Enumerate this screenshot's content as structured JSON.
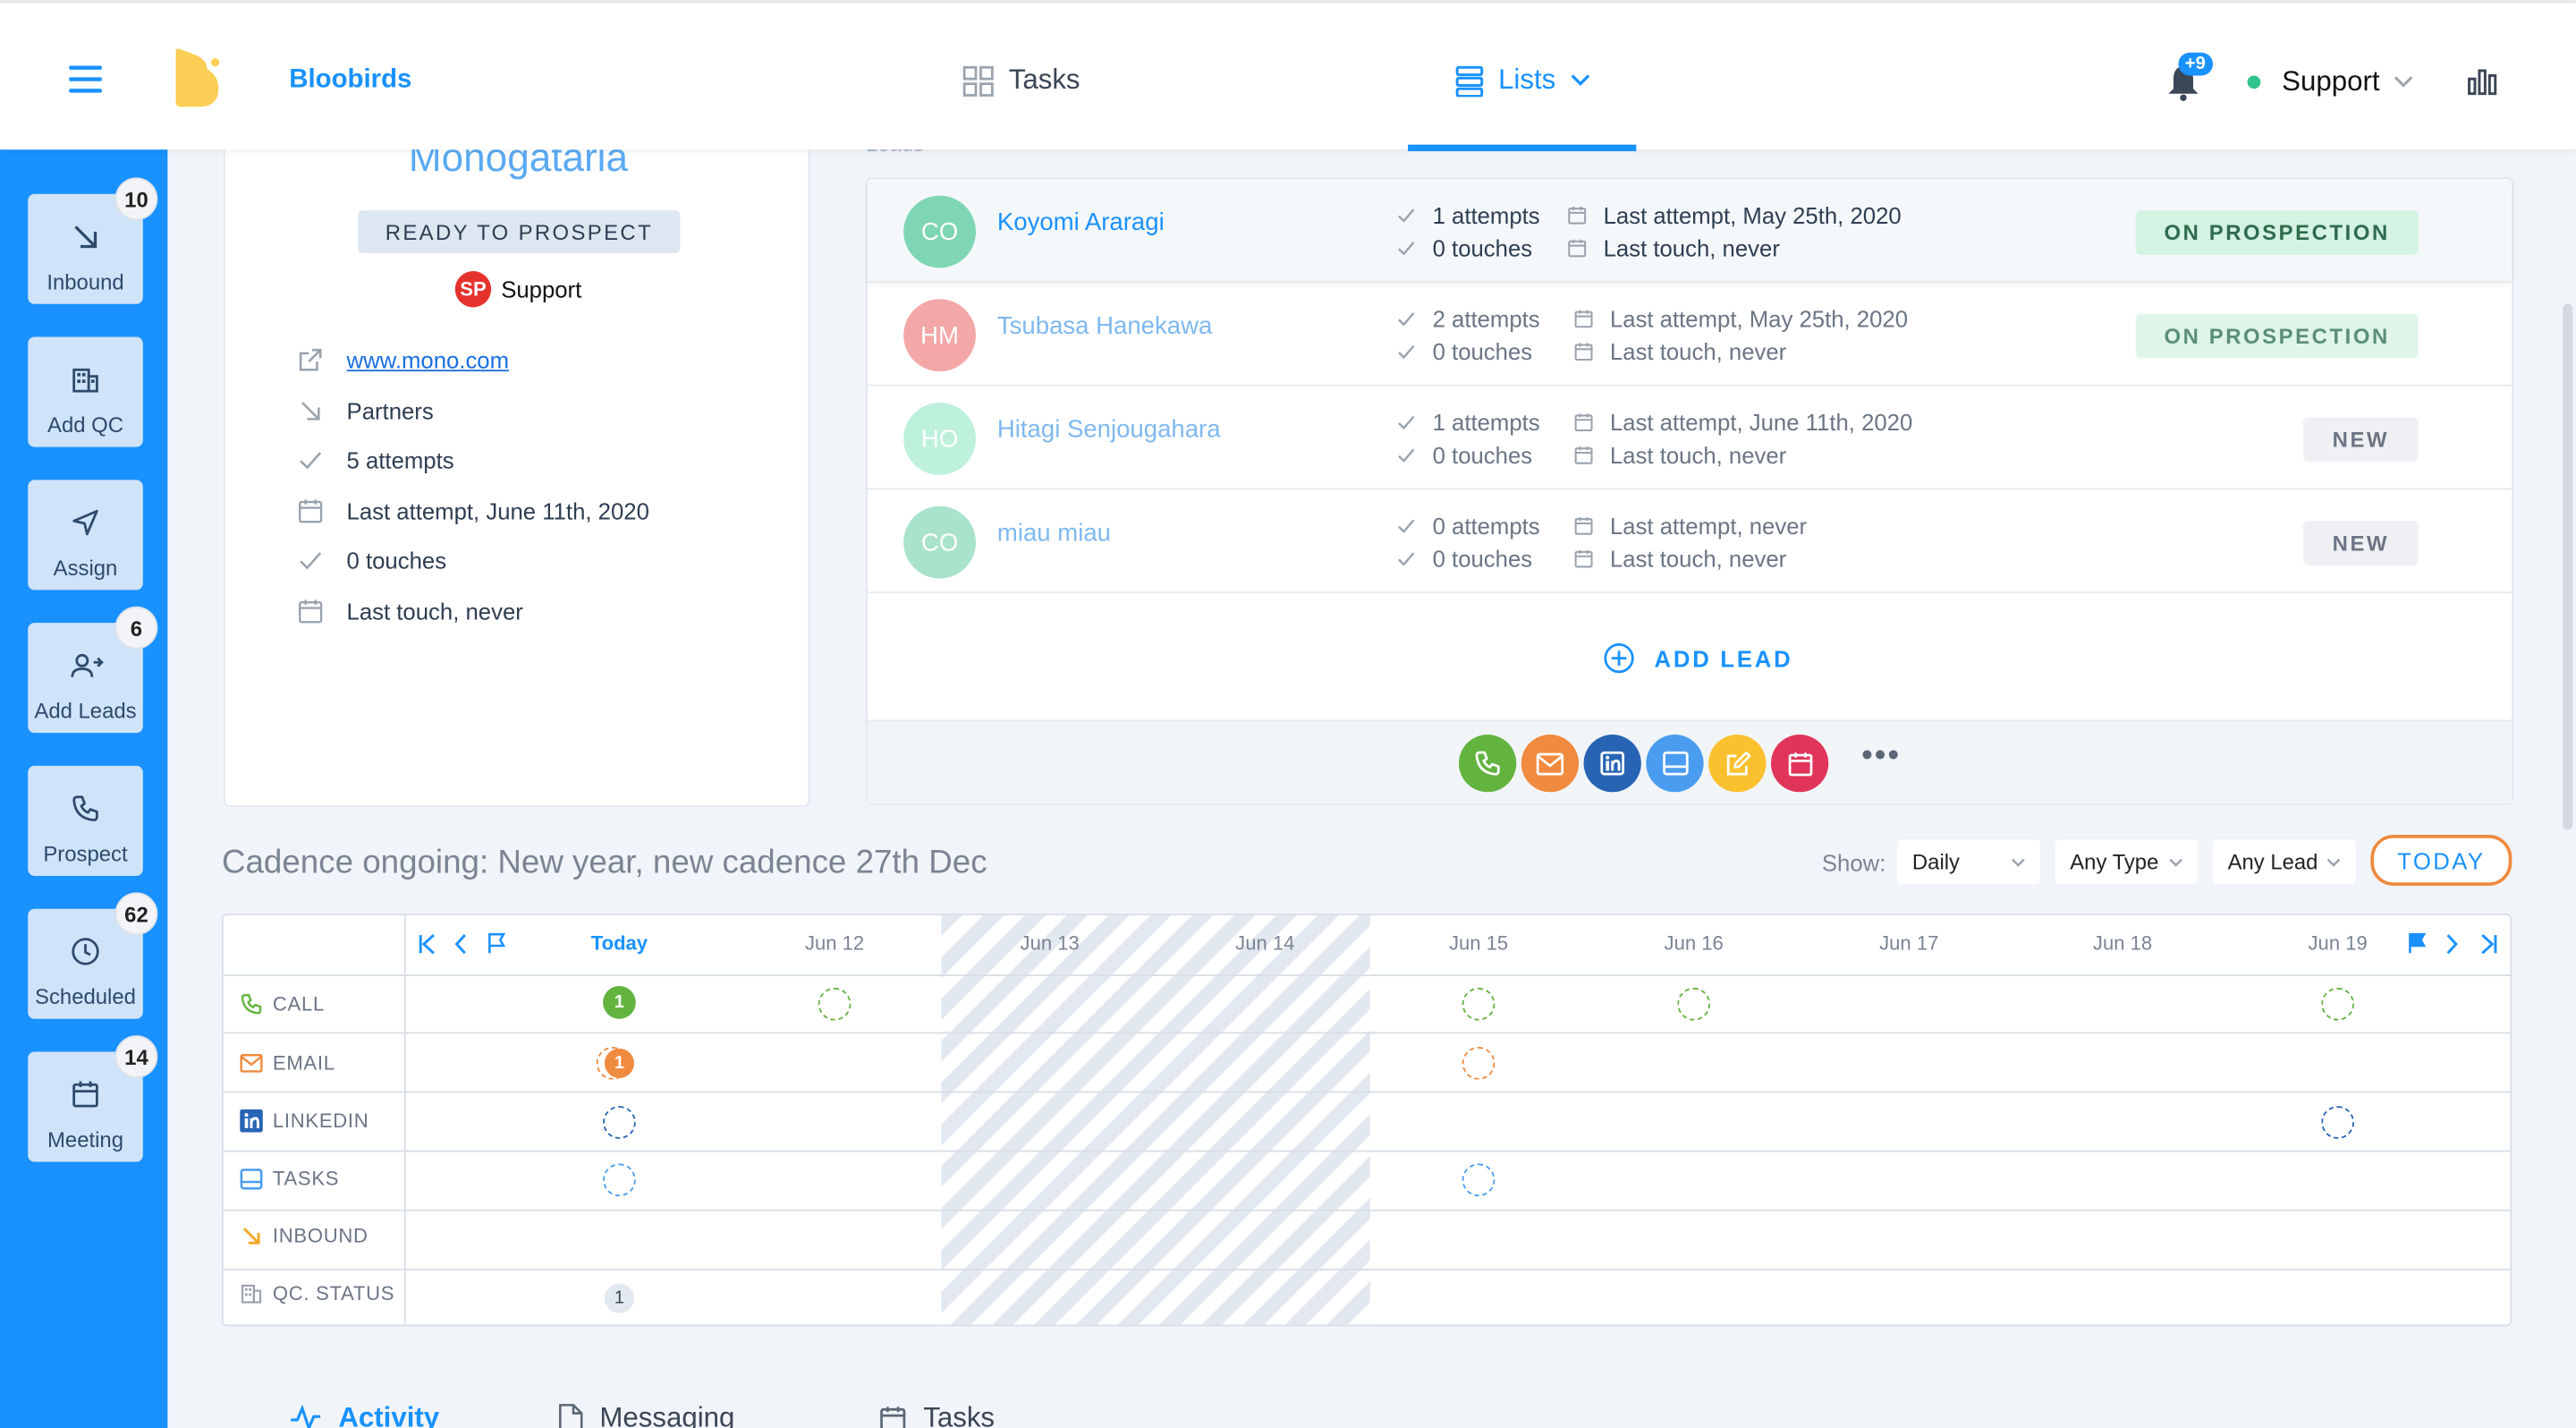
{
  "header": {
    "brand": "Bloobirds",
    "nav": {
      "tasks": "Tasks",
      "lists": "Lists"
    },
    "notif_badge": "+9",
    "user": "Support"
  },
  "sidebar": {
    "items": [
      {
        "label": "Inbound",
        "badge": "10",
        "icon": "arrow-down-right-icon"
      },
      {
        "label": "Add QC",
        "badge": "",
        "icon": "building-icon"
      },
      {
        "label": "Assign",
        "badge": "",
        "icon": "send-icon"
      },
      {
        "label": "Add Leads",
        "badge": "6",
        "icon": "user-plus-icon"
      },
      {
        "label": "Prospect",
        "badge": "",
        "icon": "phone-icon"
      },
      {
        "label": "Scheduled",
        "badge": "62",
        "icon": "clock-icon"
      },
      {
        "label": "Meeting",
        "badge": "14",
        "icon": "calendar-icon"
      }
    ]
  },
  "company": {
    "name": "Monogataria",
    "status": "READY TO PROSPECT",
    "owner_initials": "SP",
    "owner": "Support",
    "website": "www.mono.com",
    "source": "Partners",
    "attempts": "5 attempts",
    "last_attempt": "Last attempt, June 11th, 2020",
    "touches": "0 touches",
    "last_touch": "Last touch, never"
  },
  "leads": {
    "title": "Leads",
    "rows": [
      {
        "initials": "CO",
        "name": "Koyomi Araragi",
        "attempts": "1 attempts",
        "touches": "0 touches",
        "last_attempt": "Last attempt, May 25th, 2020",
        "last_touch": "Last touch, never",
        "status": "ON PROSPECTION",
        "color": "#7fd6b4"
      },
      {
        "initials": "HM",
        "name": "Tsubasa Hanekawa",
        "attempts": "2 attempts",
        "touches": "0 touches",
        "last_attempt": "Last attempt, May 25th, 2020",
        "last_touch": "Last touch, never",
        "status": "ON PROSPECTION",
        "color": "#f4a7a7"
      },
      {
        "initials": "HO",
        "name": "Hitagi Senjougahara",
        "attempts": "1 attempts",
        "touches": "0 touches",
        "last_attempt": "Last attempt, June 11th, 2020",
        "last_touch": "Last touch, never",
        "status": "NEW",
        "color": "#bdf1dc"
      },
      {
        "initials": "CO",
        "name": "miau miau",
        "attempts": "0 attempts",
        "touches": "0 touches",
        "last_attempt": "Last attempt, never",
        "last_touch": "Last touch, never",
        "status": "NEW",
        "color": "#a9e3cb"
      }
    ],
    "add_label": "ADD LEAD",
    "more": "•••"
  },
  "cadence": {
    "title": "Cadence ongoing: New year, new cadence 27th Dec",
    "show_label": "Show:",
    "filters": {
      "period": "Daily",
      "type": "Any Type",
      "lead": "Any Lead"
    },
    "today_btn": "TODAY",
    "days": [
      "Today",
      "Jun 12",
      "Jun 13",
      "Jun 14",
      "Jun 15",
      "Jun 16",
      "Jun 17",
      "Jun 18",
      "Jun 19"
    ],
    "rows": [
      "CALL",
      "EMAIL",
      "LINKEDIN",
      "TASKS",
      "INBOUND",
      "QC. STATUS"
    ],
    "marks": {
      "call_today": "1",
      "email_today": "1",
      "qc_today": "1"
    }
  },
  "tabs": {
    "activity": "Activity",
    "messaging": "Messaging",
    "tasks": "Tasks"
  },
  "colors": {
    "primary": "#1991ff",
    "call": "#63b33f",
    "email": "#f08a3e",
    "linkedin": "#2864b4",
    "task": "#4a9cf0",
    "qc": "#9aa3ad"
  }
}
